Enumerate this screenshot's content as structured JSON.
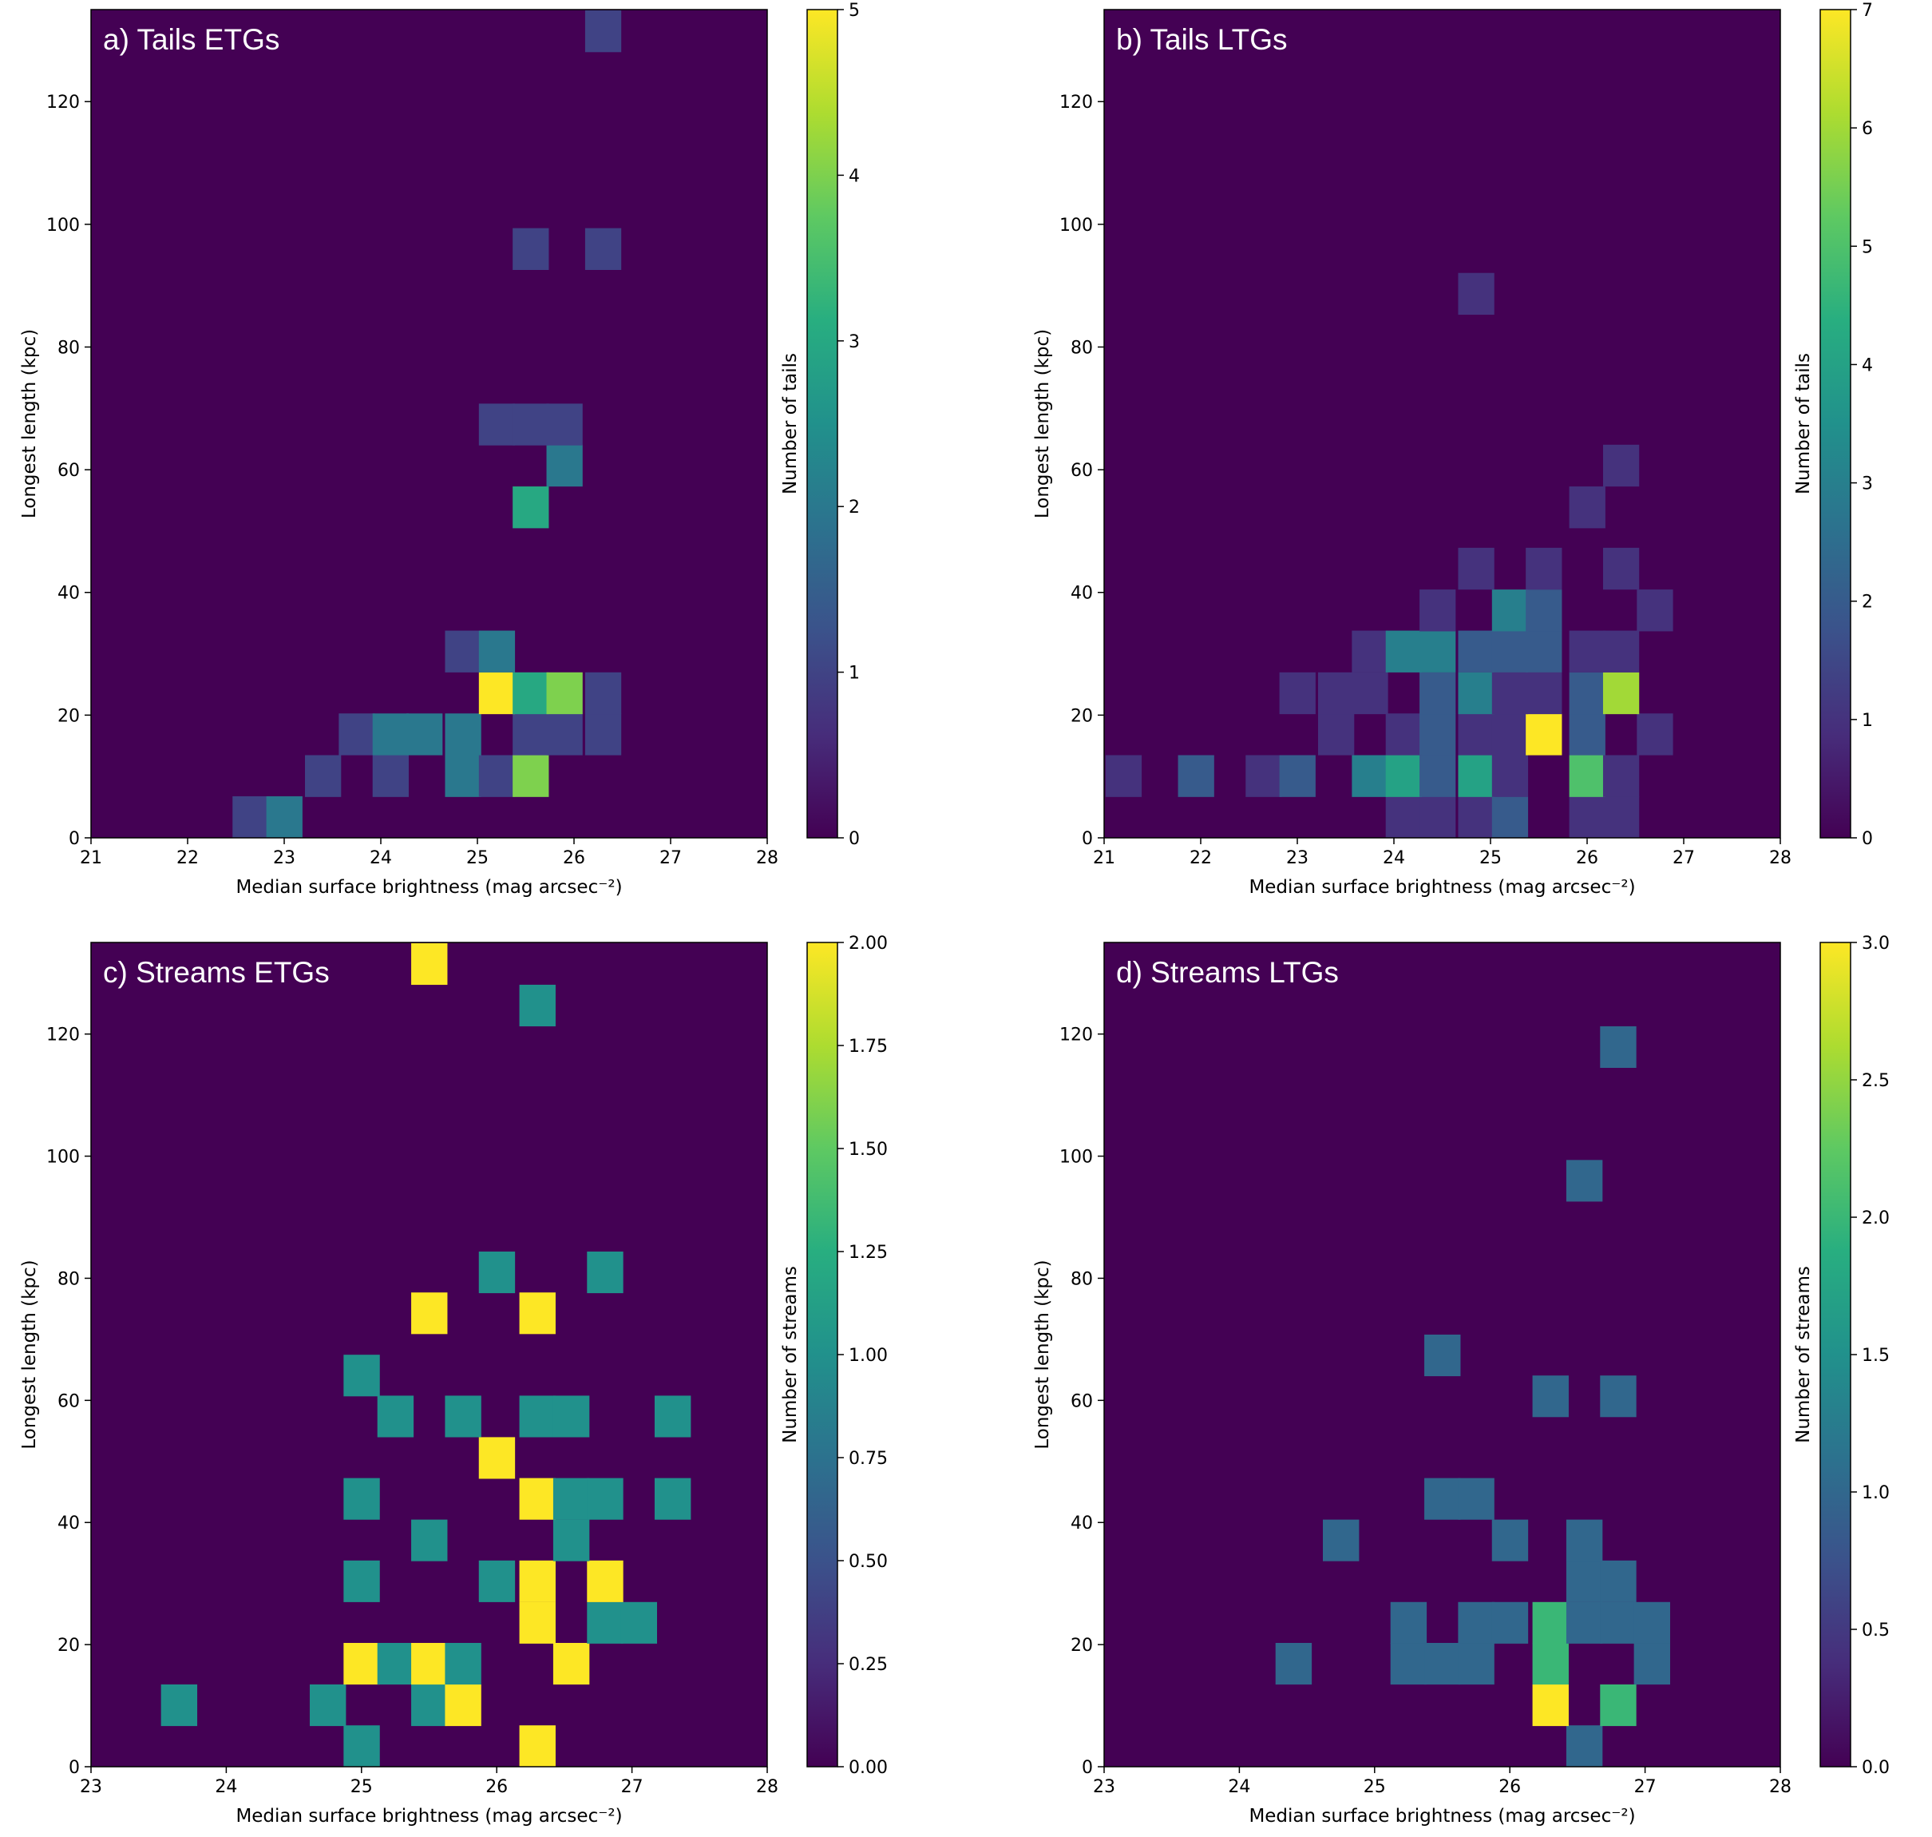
{
  "figure_note": "",
  "colors": {
    "background": "#440154",
    "frame": "#000000"
  },
  "chart_data": [
    {
      "type": "heatmap",
      "title": "a) Tails ETGs",
      "xlabel": "Median surface brightness (mag arcsec$^{-2}$)",
      "ylabel": "Longest length (kpc)",
      "colorbar_label": "Number of tails",
      "colormap": "viridis",
      "xlim": [
        21,
        28
      ],
      "ylim": [
        0,
        135
      ],
      "xticks": [
        21,
        22,
        23,
        24,
        25,
        26,
        27,
        28
      ],
      "yticks": [
        0,
        20,
        40,
        60,
        80,
        100,
        120
      ],
      "cticks": [
        0,
        1,
        2,
        3,
        4,
        5
      ],
      "clim": [
        0,
        5
      ],
      "bin_width_x": 0.37,
      "bin_width_y": 6.75,
      "cells": [
        {
          "x": 22.65,
          "y": 3.4,
          "v": 1
        },
        {
          "x": 23.0,
          "y": 3.4,
          "v": 2
        },
        {
          "x": 23.4,
          "y": 10.1,
          "v": 1
        },
        {
          "x": 24.1,
          "y": 10.1,
          "v": 1
        },
        {
          "x": 24.85,
          "y": 10.1,
          "v": 2
        },
        {
          "x": 25.2,
          "y": 10.1,
          "v": 1
        },
        {
          "x": 25.55,
          "y": 10.1,
          "v": 4
        },
        {
          "x": 23.75,
          "y": 16.9,
          "v": 1
        },
        {
          "x": 24.1,
          "y": 16.9,
          "v": 2
        },
        {
          "x": 24.45,
          "y": 16.9,
          "v": 2
        },
        {
          "x": 24.85,
          "y": 16.9,
          "v": 2
        },
        {
          "x": 25.55,
          "y": 16.9,
          "v": 1
        },
        {
          "x": 25.9,
          "y": 16.9,
          "v": 1
        },
        {
          "x": 26.3,
          "y": 16.9,
          "v": 1
        },
        {
          "x": 25.2,
          "y": 23.6,
          "v": 5
        },
        {
          "x": 25.55,
          "y": 23.6,
          "v": 3
        },
        {
          "x": 25.9,
          "y": 23.6,
          "v": 4
        },
        {
          "x": 26.3,
          "y": 23.6,
          "v": 1
        },
        {
          "x": 24.85,
          "y": 30.4,
          "v": 1
        },
        {
          "x": 25.2,
          "y": 30.4,
          "v": 2
        },
        {
          "x": 25.55,
          "y": 53.9,
          "v": 3
        },
        {
          "x": 25.9,
          "y": 60.7,
          "v": 2
        },
        {
          "x": 25.2,
          "y": 67.4,
          "v": 1
        },
        {
          "x": 25.55,
          "y": 67.4,
          "v": 1
        },
        {
          "x": 25.9,
          "y": 67.4,
          "v": 1
        },
        {
          "x": 25.55,
          "y": 96.0,
          "v": 1
        },
        {
          "x": 26.3,
          "y": 96.0,
          "v": 1
        },
        {
          "x": 26.3,
          "y": 131.5,
          "v": 1
        }
      ]
    },
    {
      "type": "heatmap",
      "title": "b) Tails LTGs",
      "xlabel": "Median surface brightness (mag arcsec$^{-2}$)",
      "ylabel": "Longest length (kpc)",
      "colorbar_label": "Number of tails",
      "colormap": "viridis",
      "xlim": [
        21,
        28
      ],
      "ylim": [
        0,
        135
      ],
      "xticks": [
        21,
        22,
        23,
        24,
        25,
        26,
        27,
        28
      ],
      "yticks": [
        0,
        20,
        40,
        60,
        80,
        100,
        120
      ],
      "cticks": [
        0,
        1,
        2,
        3,
        4,
        5,
        6,
        7
      ],
      "clim": [
        0,
        7
      ],
      "bin_width_x": 0.37,
      "bin_width_y": 6.75,
      "cells": [
        {
          "x": 24.1,
          "y": 3.4,
          "v": 1
        },
        {
          "x": 24.45,
          "y": 3.4,
          "v": 1
        },
        {
          "x": 24.85,
          "y": 3.4,
          "v": 1
        },
        {
          "x": 25.2,
          "y": 3.4,
          "v": 2
        },
        {
          "x": 26.0,
          "y": 3.4,
          "v": 1
        },
        {
          "x": 26.35,
          "y": 3.4,
          "v": 1
        },
        {
          "x": 21.2,
          "y": 10.1,
          "v": 1
        },
        {
          "x": 21.95,
          "y": 10.1,
          "v": 2
        },
        {
          "x": 22.65,
          "y": 10.1,
          "v": 1
        },
        {
          "x": 23.0,
          "y": 10.1,
          "v": 2
        },
        {
          "x": 23.75,
          "y": 10.1,
          "v": 3
        },
        {
          "x": 24.1,
          "y": 10.1,
          "v": 4
        },
        {
          "x": 24.45,
          "y": 10.1,
          "v": 2
        },
        {
          "x": 24.85,
          "y": 10.1,
          "v": 4
        },
        {
          "x": 25.2,
          "y": 10.1,
          "v": 1
        },
        {
          "x": 26.0,
          "y": 10.1,
          "v": 5
        },
        {
          "x": 26.35,
          "y": 10.1,
          "v": 1
        },
        {
          "x": 23.4,
          "y": 16.9,
          "v": 1
        },
        {
          "x": 24.1,
          "y": 16.9,
          "v": 1
        },
        {
          "x": 24.45,
          "y": 16.9,
          "v": 2
        },
        {
          "x": 24.85,
          "y": 16.9,
          "v": 1
        },
        {
          "x": 25.2,
          "y": 16.9,
          "v": 1
        },
        {
          "x": 25.55,
          "y": 16.9,
          "v": 7
        },
        {
          "x": 26.0,
          "y": 16.9,
          "v": 2
        },
        {
          "x": 26.7,
          "y": 16.9,
          "v": 1
        },
        {
          "x": 23.0,
          "y": 23.6,
          "v": 1
        },
        {
          "x": 23.4,
          "y": 23.6,
          "v": 1
        },
        {
          "x": 23.75,
          "y": 23.6,
          "v": 1
        },
        {
          "x": 24.45,
          "y": 23.6,
          "v": 2
        },
        {
          "x": 24.85,
          "y": 23.6,
          "v": 3
        },
        {
          "x": 25.2,
          "y": 23.6,
          "v": 1
        },
        {
          "x": 25.55,
          "y": 23.6,
          "v": 1
        },
        {
          "x": 26.0,
          "y": 23.6,
          "v": 2
        },
        {
          "x": 26.35,
          "y": 23.6,
          "v": 6
        },
        {
          "x": 23.75,
          "y": 30.4,
          "v": 1
        },
        {
          "x": 24.1,
          "y": 30.4,
          "v": 3
        },
        {
          "x": 24.45,
          "y": 30.4,
          "v": 3
        },
        {
          "x": 24.85,
          "y": 30.4,
          "v": 2
        },
        {
          "x": 25.2,
          "y": 30.4,
          "v": 2
        },
        {
          "x": 25.55,
          "y": 30.4,
          "v": 2
        },
        {
          "x": 26.0,
          "y": 30.4,
          "v": 1
        },
        {
          "x": 26.35,
          "y": 30.4,
          "v": 1
        },
        {
          "x": 24.45,
          "y": 37.1,
          "v": 1
        },
        {
          "x": 25.2,
          "y": 37.1,
          "v": 3
        },
        {
          "x": 25.55,
          "y": 37.1,
          "v": 2
        },
        {
          "x": 26.7,
          "y": 37.1,
          "v": 1
        },
        {
          "x": 24.85,
          "y": 43.9,
          "v": 1
        },
        {
          "x": 25.55,
          "y": 43.9,
          "v": 1
        },
        {
          "x": 26.35,
          "y": 43.9,
          "v": 1
        },
        {
          "x": 26.0,
          "y": 53.9,
          "v": 1
        },
        {
          "x": 26.35,
          "y": 60.7,
          "v": 1
        },
        {
          "x": 24.85,
          "y": 88.7,
          "v": 1
        }
      ]
    },
    {
      "type": "heatmap",
      "title": "c) Streams ETGs",
      "xlabel": "Median surface brightness (mag arcsec$^{-2}$)",
      "ylabel": "Longest length (kpc)",
      "colorbar_label": "Number of streams",
      "colormap": "viridis",
      "xlim": [
        23,
        28
      ],
      "ylim": [
        0,
        135
      ],
      "xticks": [
        23,
        24,
        25,
        26,
        27,
        28
      ],
      "yticks": [
        0,
        20,
        40,
        60,
        80,
        100,
        120
      ],
      "cticks": [
        "0.00",
        "0.25",
        "0.50",
        "0.75",
        "1.00",
        "1.25",
        "1.50",
        "1.75",
        "2.00"
      ],
      "clim": [
        0,
        2
      ],
      "bin_width_x": 0.265,
      "bin_width_y": 6.75,
      "cells": [
        {
          "x": 25.0,
          "y": 3.4,
          "v": 1
        },
        {
          "x": 26.3,
          "y": 3.4,
          "v": 2
        },
        {
          "x": 23.65,
          "y": 10.1,
          "v": 1
        },
        {
          "x": 24.75,
          "y": 10.1,
          "v": 1
        },
        {
          "x": 25.5,
          "y": 10.1,
          "v": 1
        },
        {
          "x": 25.75,
          "y": 10.1,
          "v": 2
        },
        {
          "x": 25.0,
          "y": 16.9,
          "v": 2
        },
        {
          "x": 25.25,
          "y": 16.9,
          "v": 1
        },
        {
          "x": 25.5,
          "y": 16.9,
          "v": 2
        },
        {
          "x": 25.75,
          "y": 16.9,
          "v": 1
        },
        {
          "x": 26.55,
          "y": 16.9,
          "v": 2
        },
        {
          "x": 26.3,
          "y": 23.6,
          "v": 2
        },
        {
          "x": 26.8,
          "y": 23.6,
          "v": 1
        },
        {
          "x": 27.05,
          "y": 23.6,
          "v": 1
        },
        {
          "x": 25.0,
          "y": 30.4,
          "v": 1
        },
        {
          "x": 26.0,
          "y": 30.4,
          "v": 1
        },
        {
          "x": 26.3,
          "y": 30.4,
          "v": 2
        },
        {
          "x": 26.8,
          "y": 30.4,
          "v": 2
        },
        {
          "x": 25.5,
          "y": 37.1,
          "v": 1
        },
        {
          "x": 26.55,
          "y": 37.1,
          "v": 1
        },
        {
          "x": 25.0,
          "y": 43.9,
          "v": 1
        },
        {
          "x": 26.3,
          "y": 43.9,
          "v": 2
        },
        {
          "x": 26.55,
          "y": 43.9,
          "v": 1
        },
        {
          "x": 26.8,
          "y": 43.9,
          "v": 1
        },
        {
          "x": 27.3,
          "y": 43.9,
          "v": 1
        },
        {
          "x": 26.0,
          "y": 50.6,
          "v": 2
        },
        {
          "x": 25.25,
          "y": 57.4,
          "v": 1
        },
        {
          "x": 25.75,
          "y": 57.4,
          "v": 1
        },
        {
          "x": 26.3,
          "y": 57.4,
          "v": 1
        },
        {
          "x": 26.55,
          "y": 57.4,
          "v": 1
        },
        {
          "x": 27.3,
          "y": 57.4,
          "v": 1
        },
        {
          "x": 25.0,
          "y": 64.1,
          "v": 1
        },
        {
          "x": 25.5,
          "y": 74.3,
          "v": 2
        },
        {
          "x": 26.3,
          "y": 74.3,
          "v": 2
        },
        {
          "x": 26.0,
          "y": 81.0,
          "v": 1
        },
        {
          "x": 26.8,
          "y": 81.0,
          "v": 1
        },
        {
          "x": 26.3,
          "y": 124.7,
          "v": 1
        },
        {
          "x": 25.5,
          "y": 131.5,
          "v": 2
        }
      ]
    },
    {
      "type": "heatmap",
      "title": "d) Streams LTGs",
      "xlabel": "Median surface brightness (mag arcsec$^{-2}$)",
      "ylabel": "Longest length (kpc)",
      "colorbar_label": "Number of streams",
      "colormap": "viridis",
      "xlim": [
        23,
        28
      ],
      "ylim": [
        0,
        135
      ],
      "xticks": [
        23,
        24,
        25,
        26,
        27,
        28
      ],
      "yticks": [
        0,
        20,
        40,
        60,
        80,
        100,
        120
      ],
      "cticks": [
        "0.0",
        "0.5",
        "1.0",
        "1.5",
        "2.0",
        "2.5",
        "3.0"
      ],
      "clim": [
        0,
        3
      ],
      "bin_width_x": 0.265,
      "bin_width_y": 6.75,
      "cells": [
        {
          "x": 26.55,
          "y": 3.4,
          "v": 1
        },
        {
          "x": 26.3,
          "y": 10.1,
          "v": 3
        },
        {
          "x": 26.8,
          "y": 10.1,
          "v": 2
        },
        {
          "x": 24.4,
          "y": 16.9,
          "v": 1
        },
        {
          "x": 25.25,
          "y": 16.9,
          "v": 1
        },
        {
          "x": 25.5,
          "y": 16.9,
          "v": 1
        },
        {
          "x": 25.75,
          "y": 16.9,
          "v": 1
        },
        {
          "x": 26.3,
          "y": 16.9,
          "v": 2
        },
        {
          "x": 27.05,
          "y": 16.9,
          "v": 1
        },
        {
          "x": 25.25,
          "y": 23.6,
          "v": 1
        },
        {
          "x": 25.75,
          "y": 23.6,
          "v": 1
        },
        {
          "x": 26.0,
          "y": 23.6,
          "v": 1
        },
        {
          "x": 26.3,
          "y": 23.6,
          "v": 2
        },
        {
          "x": 26.55,
          "y": 23.6,
          "v": 1
        },
        {
          "x": 26.8,
          "y": 23.6,
          "v": 1
        },
        {
          "x": 27.05,
          "y": 23.6,
          "v": 1
        },
        {
          "x": 26.55,
          "y": 30.4,
          "v": 1
        },
        {
          "x": 26.8,
          "y": 30.4,
          "v": 1
        },
        {
          "x": 24.75,
          "y": 37.1,
          "v": 1
        },
        {
          "x": 26.0,
          "y": 37.1,
          "v": 1
        },
        {
          "x": 26.55,
          "y": 37.1,
          "v": 1
        },
        {
          "x": 25.5,
          "y": 43.9,
          "v": 1
        },
        {
          "x": 25.75,
          "y": 43.9,
          "v": 1
        },
        {
          "x": 26.3,
          "y": 60.7,
          "v": 1
        },
        {
          "x": 26.8,
          "y": 60.7,
          "v": 1
        },
        {
          "x": 25.5,
          "y": 67.4,
          "v": 1
        },
        {
          "x": 26.55,
          "y": 96.0,
          "v": 1
        },
        {
          "x": 26.8,
          "y": 117.9,
          "v": 1
        }
      ]
    }
  ]
}
